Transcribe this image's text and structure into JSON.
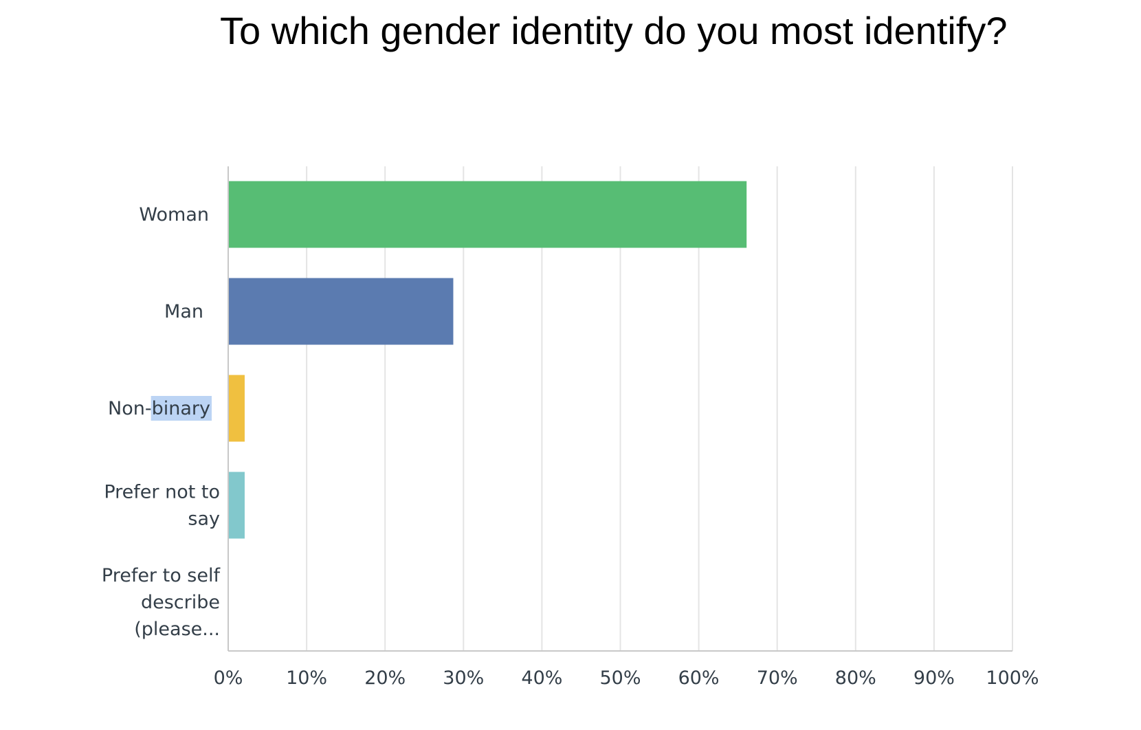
{
  "chart_data": {
    "type": "bar",
    "orientation": "horizontal",
    "title": "To which gender identity do you most identify?",
    "categories": [
      [
        "Woman"
      ],
      [
        "Man"
      ],
      [
        "Non-binary"
      ],
      [
        "Prefer not to",
        "say"
      ],
      [
        "Prefer to self",
        "describe",
        "(please..."
      ]
    ],
    "values": [
      66.1,
      28.7,
      2.1,
      2.1,
      0
    ],
    "colors": [
      "#57bd74",
      "#5b7bb0",
      "#f0c040",
      "#82c8cc",
      "#d9d9d9"
    ],
    "xlim": [
      0,
      100
    ],
    "xticks": [
      "0%",
      "10%",
      "20%",
      "30%",
      "40%",
      "50%",
      "60%",
      "70%",
      "80%",
      "90%",
      "100%"
    ],
    "grid": true,
    "legend": "none"
  }
}
